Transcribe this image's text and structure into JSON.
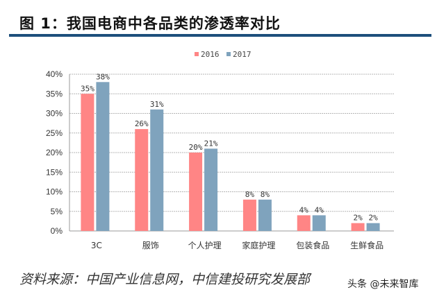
{
  "header": {
    "title": "图 1：我国电商中各品类的渗透率对比"
  },
  "footer": {
    "source": "资料来源：中国产业信息网，中信建投研究发展部",
    "watermark": "头条 @未来智库"
  },
  "chart_data": {
    "type": "bar",
    "title": "",
    "categories": [
      "3C",
      "服饰",
      "个人护理",
      "家庭护理",
      "包装食品",
      "生鲜食品"
    ],
    "series": [
      {
        "name": "2016",
        "color": "#ff8585",
        "values": [
          35,
          26,
          20,
          8,
          4,
          2
        ]
      },
      {
        "name": "2017",
        "color": "#7fa3bd",
        "values": [
          38,
          31,
          21,
          8,
          4,
          2
        ]
      }
    ],
    "ylim": [
      0,
      40
    ],
    "yticks": [
      "0%",
      "5%",
      "10%",
      "15%",
      "20%",
      "25%",
      "30%",
      "35%",
      "40%"
    ],
    "value_suffix": "%",
    "grid": true,
    "legend": "top-center",
    "xlabel": "",
    "ylabel": ""
  }
}
